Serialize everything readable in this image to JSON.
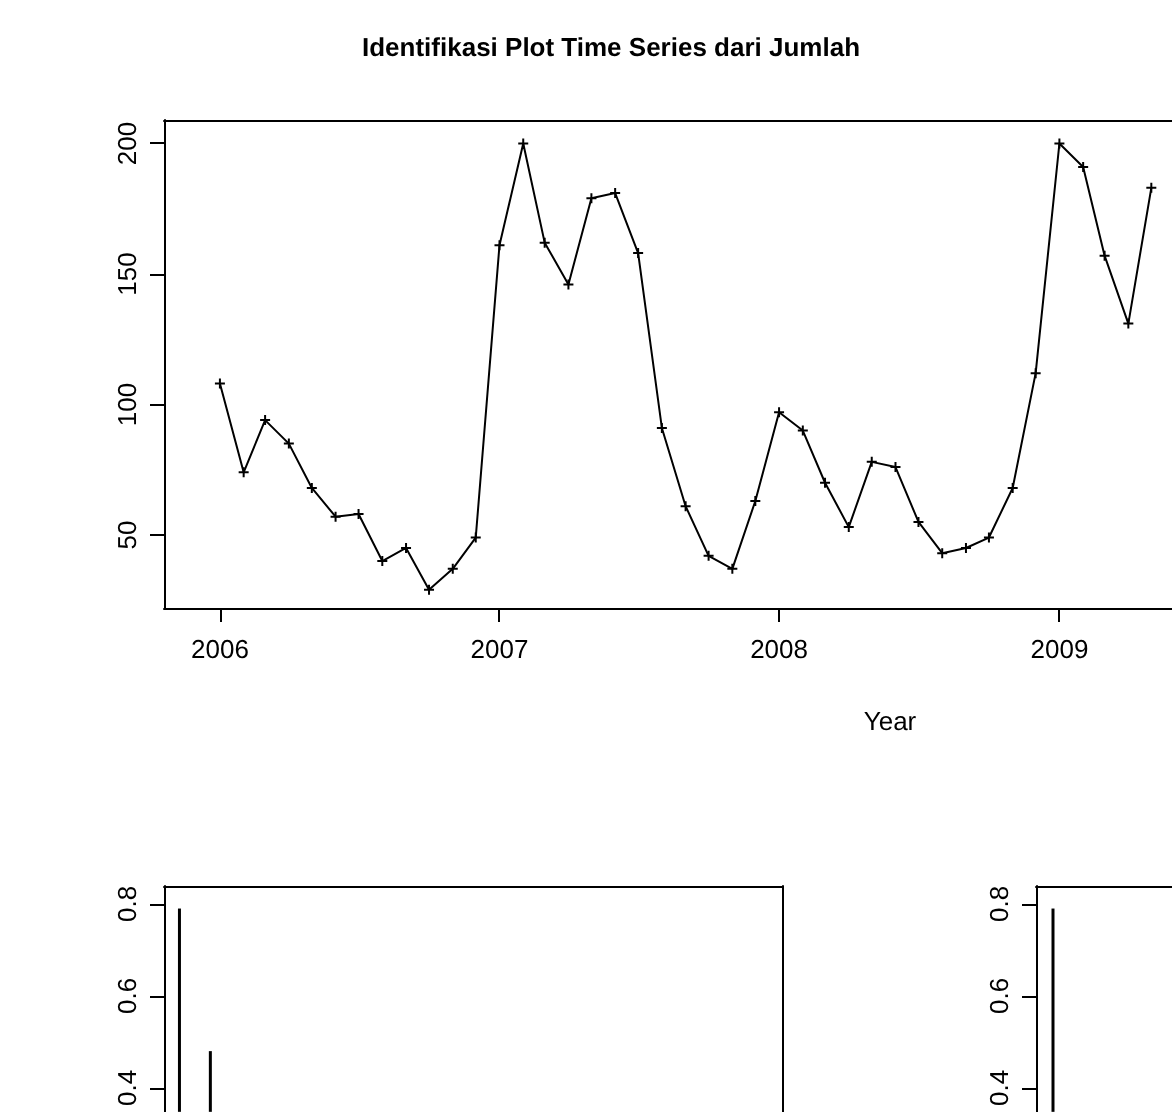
{
  "chart_data": [
    {
      "type": "line",
      "title": "Identifikasi Plot Time Series dari Jumlah",
      "xlabel": "Year",
      "x": [
        "2006-01",
        "2006-02",
        "2006-03",
        "2006-04",
        "2006-05",
        "2006-06",
        "2006-07",
        "2006-08",
        "2006-09",
        "2006-10",
        "2006-11",
        "2006-12",
        "2007-01",
        "2007-02",
        "2007-03",
        "2007-04",
        "2007-05",
        "2007-06",
        "2007-07",
        "2007-08",
        "2007-09",
        "2007-10",
        "2007-11",
        "2007-12",
        "2008-01",
        "2008-02",
        "2008-03",
        "2008-04",
        "2008-05",
        "2008-06",
        "2008-07",
        "2008-08",
        "2008-09",
        "2008-10",
        "2008-11",
        "2008-12",
        "2009-01",
        "2009-02",
        "2009-03",
        "2009-04",
        "2009-05"
      ],
      "series": [
        {
          "color": "#000000",
          "values": [
            108,
            74,
            94,
            85,
            68,
            57,
            58,
            40,
            45,
            29,
            37,
            49,
            161,
            200,
            162,
            146,
            179,
            181,
            158,
            91,
            61,
            42,
            37,
            63,
            97,
            90,
            70,
            53,
            78,
            76,
            55,
            43,
            45,
            49,
            68,
            112,
            200,
            191,
            157,
            131,
            183
          ]
        }
      ],
      "xlim": [
        "2005-10-20",
        "2009-05-28"
      ],
      "xticks": [
        "2006",
        "2007",
        "2008",
        "2009"
      ],
      "ylim": [
        22,
        209
      ],
      "yticks": [
        50,
        100,
        150,
        200
      ],
      "marker": "cross",
      "line_style": "solid",
      "grid": false
    },
    {
      "type": "bar",
      "categories": [
        null,
        null,
        null,
        null,
        null,
        null,
        null,
        null,
        null,
        null,
        null,
        null,
        null,
        null,
        null,
        null,
        null,
        null,
        null,
        null
      ],
      "series": [
        {
          "color": "#000000",
          "values": [
            0.79,
            0.48,
            null,
            null,
            null,
            null,
            null,
            null,
            null,
            null,
            null,
            null,
            null,
            null,
            null,
            null,
            null,
            null,
            null,
            null
          ]
        }
      ],
      "ylim": [
        0.348,
        0.839
      ],
      "yticks": [
        0.4,
        0.6,
        0.8
      ],
      "tick_labels": "y",
      "grid": false
    },
    {
      "type": "bar",
      "categories": [
        null,
        null,
        null,
        null
      ],
      "series": [
        {
          "color": "#000000",
          "values": [
            0.79,
            null,
            null,
            null
          ]
        }
      ],
      "ylim": [
        0.348,
        0.839
      ],
      "yticks": [
        0.4,
        0.6,
        0.8
      ],
      "tick_labels": "y",
      "grid": false
    }
  ]
}
